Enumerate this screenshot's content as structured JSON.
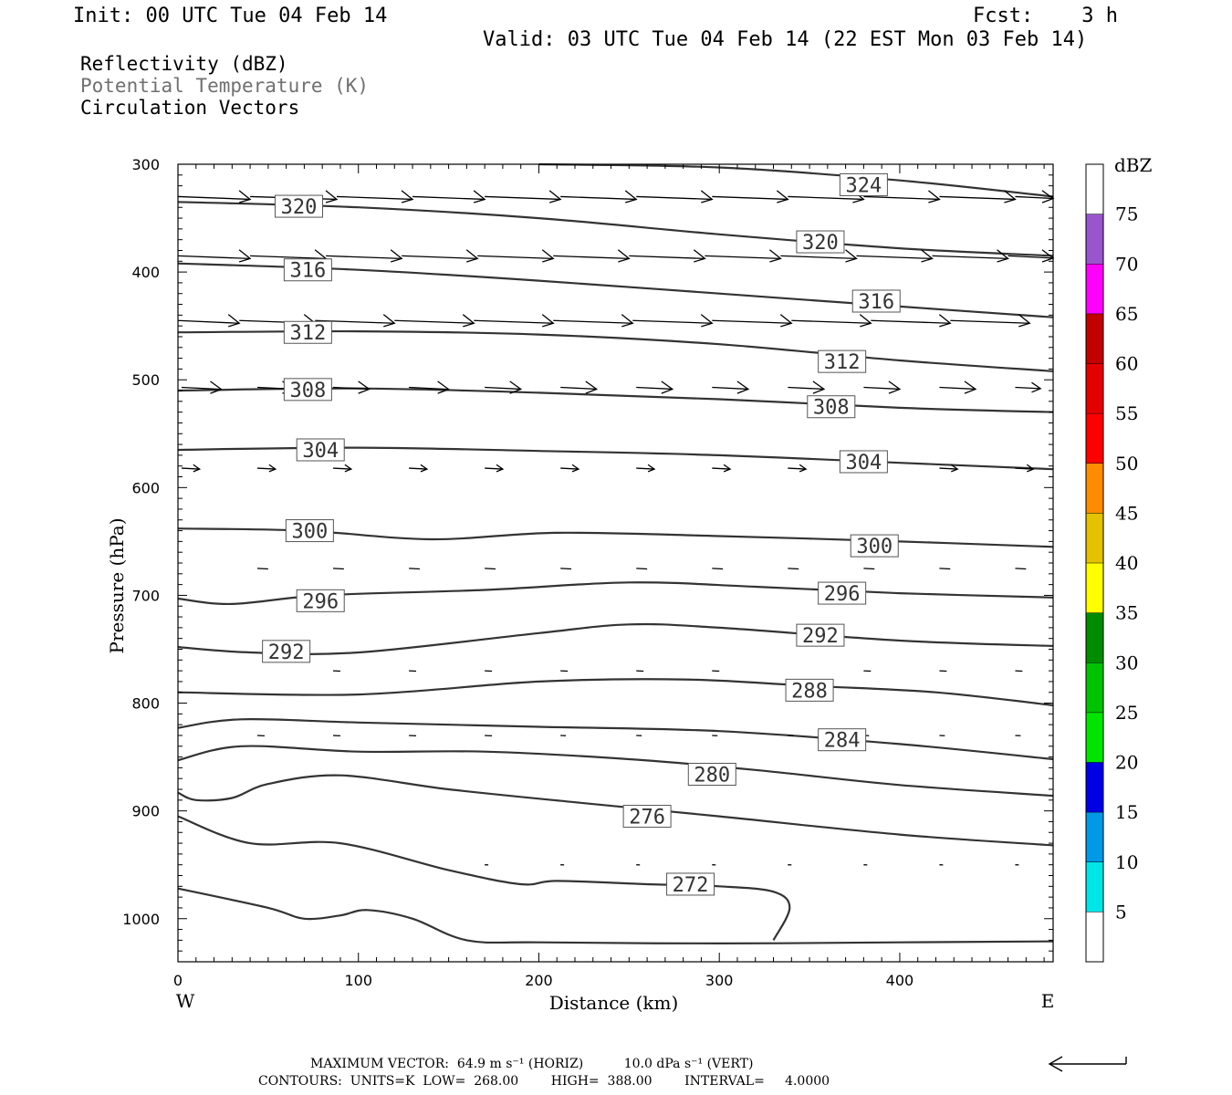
{
  "header": {
    "init": "Init: 00 UTC Tue 04 Feb 14",
    "fcst": "Fcst:    3 h",
    "valid": "Valid: 03 UTC Tue 04 Feb 14 (22 EST Mon 03 Feb 14)"
  },
  "legend_lines": {
    "reflectivity": "Reflectivity (dBZ)",
    "theta": "Potential Temperature (K)",
    "vectors": "Circulation Vectors"
  },
  "colors": {
    "theta_label": "#707070",
    "contour": "#333333",
    "axis": "#000000"
  },
  "chart_data": {
    "type": "line",
    "xlabel": "Distance (km)",
    "ylabel": "Pressure (hPa)",
    "xlim": [
      0,
      485
    ],
    "ylim": [
      1040,
      300
    ],
    "x_ticks": [
      0,
      100,
      200,
      300,
      400
    ],
    "y_ticks": [
      300,
      400,
      500,
      600,
      700,
      800,
      900,
      1000
    ],
    "x_end_labels": {
      "left": "W",
      "right": "E"
    },
    "contour_units": "K",
    "contours": [
      {
        "level": "324",
        "points": [
          [
            200,
            300
          ],
          [
            300,
            303
          ],
          [
            400,
            315
          ],
          [
            485,
            330
          ]
        ],
        "labels": [
          [
            380,
            319
          ]
        ]
      },
      {
        "level": "320",
        "points": [
          [
            0,
            335
          ],
          [
            100,
            340
          ],
          [
            200,
            350
          ],
          [
            300,
            365
          ],
          [
            400,
            378
          ],
          [
            485,
            385
          ]
        ],
        "labels": [
          [
            67,
            339
          ],
          [
            356,
            372
          ]
        ]
      },
      {
        "level": "316",
        "points": [
          [
            0,
            392
          ],
          [
            100,
            398
          ],
          [
            200,
            408
          ],
          [
            300,
            420
          ],
          [
            400,
            432
          ],
          [
            485,
            442
          ]
        ],
        "labels": [
          [
            72,
            398
          ],
          [
            387,
            427
          ]
        ]
      },
      {
        "level": "312",
        "points": [
          [
            0,
            456
          ],
          [
            100,
            455
          ],
          [
            200,
            458
          ],
          [
            300,
            467
          ],
          [
            400,
            482
          ],
          [
            485,
            492
          ]
        ],
        "labels": [
          [
            72,
            456
          ],
          [
            368,
            483
          ]
        ]
      },
      {
        "level": "308",
        "points": [
          [
            0,
            510
          ],
          [
            100,
            508
          ],
          [
            200,
            512
          ],
          [
            300,
            518
          ],
          [
            400,
            526
          ],
          [
            485,
            530
          ]
        ],
        "labels": [
          [
            72,
            509
          ],
          [
            362,
            525
          ]
        ]
      },
      {
        "level": "304",
        "points": [
          [
            0,
            565
          ],
          [
            100,
            563
          ],
          [
            200,
            566
          ],
          [
            300,
            570
          ],
          [
            400,
            577
          ],
          [
            485,
            583
          ]
        ],
        "labels": [
          [
            79,
            565
          ],
          [
            380,
            576
          ]
        ]
      },
      {
        "level": "300",
        "points": [
          [
            0,
            638
          ],
          [
            70,
            640
          ],
          [
            140,
            648
          ],
          [
            210,
            642
          ],
          [
            300,
            645
          ],
          [
            400,
            650
          ],
          [
            485,
            655
          ]
        ],
        "labels": [
          [
            73,
            640
          ],
          [
            386,
            654
          ]
        ]
      },
      {
        "level": "296",
        "points": [
          [
            0,
            703
          ],
          [
            30,
            708
          ],
          [
            80,
            700
          ],
          [
            170,
            695
          ],
          [
            250,
            688
          ],
          [
            320,
            692
          ],
          [
            400,
            698
          ],
          [
            485,
            702
          ]
        ],
        "labels": [
          [
            79,
            705
          ],
          [
            368,
            698
          ]
        ]
      },
      {
        "level": "292",
        "points": [
          [
            0,
            748
          ],
          [
            40,
            753
          ],
          [
            100,
            753
          ],
          [
            200,
            735
          ],
          [
            250,
            727
          ],
          [
            300,
            730
          ],
          [
            400,
            742
          ],
          [
            485,
            747
          ]
        ],
        "labels": [
          [
            60,
            752
          ],
          [
            356,
            737
          ]
        ]
      },
      {
        "level": "288",
        "points": [
          [
            0,
            790
          ],
          [
            100,
            792
          ],
          [
            200,
            780
          ],
          [
            280,
            778
          ],
          [
            350,
            784
          ],
          [
            420,
            790
          ],
          [
            485,
            802
          ]
        ],
        "labels": [
          [
            350,
            788
          ]
        ]
      },
      {
        "level": "284",
        "points": [
          [
            0,
            823
          ],
          [
            35,
            815
          ],
          [
            100,
            818
          ],
          [
            200,
            822
          ],
          [
            300,
            826
          ],
          [
            400,
            838
          ],
          [
            485,
            852
          ]
        ],
        "labels": [
          [
            368,
            834
          ]
        ]
      },
      {
        "level": "280",
        "points": [
          [
            0,
            853
          ],
          [
            35,
            840
          ],
          [
            100,
            845
          ],
          [
            170,
            845
          ],
          [
            250,
            852
          ],
          [
            320,
            862
          ],
          [
            400,
            876
          ],
          [
            485,
            886
          ]
        ],
        "labels": [
          [
            296,
            866
          ]
        ]
      },
      {
        "level": "276",
        "points": [
          [
            0,
            883
          ],
          [
            10,
            890
          ],
          [
            30,
            888
          ],
          [
            50,
            875
          ],
          [
            90,
            867
          ],
          [
            150,
            880
          ],
          [
            220,
            892
          ],
          [
            300,
            905
          ],
          [
            400,
            922
          ],
          [
            485,
            932
          ]
        ],
        "labels": [
          [
            260,
            905
          ]
        ]
      },
      {
        "level": "272",
        "points": [
          [
            0,
            905
          ],
          [
            40,
            930
          ],
          [
            90,
            930
          ],
          [
            150,
            955
          ],
          [
            190,
            968
          ],
          [
            210,
            965
          ],
          [
            260,
            968
          ],
          [
            300,
            970
          ],
          [
            330,
            975
          ],
          [
            339,
            990
          ],
          [
            330,
            1020
          ]
        ],
        "labels": [
          [
            284,
            968
          ]
        ]
      },
      {
        "level": "",
        "points": [
          [
            0,
            972
          ],
          [
            50,
            990
          ],
          [
            70,
            1000
          ],
          [
            90,
            997
          ],
          [
            105,
            992
          ],
          [
            130,
            1000
          ],
          [
            160,
            1020
          ],
          [
            200,
            1022
          ],
          [
            300,
            1023
          ],
          [
            400,
            1022
          ],
          [
            485,
            1021
          ]
        ],
        "labels": []
      }
    ],
    "vectors": [
      {
        "p": 330,
        "x": [
          [
            0,
            40
          ],
          [
            40,
            88
          ],
          [
            88,
            130
          ],
          [
            130,
            170
          ],
          [
            170,
            212
          ],
          [
            212,
            254
          ],
          [
            254,
            296
          ],
          [
            296,
            338
          ],
          [
            338,
            380
          ],
          [
            380,
            422
          ],
          [
            422,
            464
          ],
          [
            464,
            485
          ]
        ]
      },
      {
        "p": 385,
        "x": [
          [
            0,
            40
          ],
          [
            40,
            82
          ],
          [
            82,
            124
          ],
          [
            124,
            166
          ],
          [
            166,
            208
          ],
          [
            208,
            250
          ],
          [
            250,
            292
          ],
          [
            292,
            334
          ],
          [
            334,
            376
          ],
          [
            376,
            418
          ],
          [
            418,
            460
          ],
          [
            460,
            485
          ]
        ]
      },
      {
        "p": 445,
        "x": [
          [
            0,
            34
          ],
          [
            34,
            76
          ],
          [
            76,
            120
          ],
          [
            120,
            164
          ],
          [
            164,
            208
          ],
          [
            208,
            252
          ],
          [
            252,
            296
          ],
          [
            296,
            340
          ],
          [
            340,
            384
          ],
          [
            384,
            428
          ],
          [
            428,
            472
          ]
        ]
      },
      {
        "p": 507,
        "x": [
          [
            2,
            24
          ],
          [
            44,
            64
          ],
          [
            86,
            106
          ],
          [
            128,
            150
          ],
          [
            170,
            190
          ],
          [
            212,
            232
          ],
          [
            254,
            274
          ],
          [
            296,
            316
          ],
          [
            338,
            358
          ],
          [
            380,
            400
          ],
          [
            422,
            442
          ],
          [
            464,
            478
          ]
        ]
      },
      {
        "p": 582,
        "x": [
          [
            2,
            12
          ],
          [
            44,
            54
          ],
          [
            86,
            96
          ],
          [
            128,
            138
          ],
          [
            170,
            180
          ],
          [
            212,
            222
          ],
          [
            254,
            264
          ],
          [
            296,
            306
          ],
          [
            338,
            348
          ],
          [
            380,
            390
          ],
          [
            422,
            432
          ],
          [
            464,
            474
          ]
        ]
      },
      {
        "p": 675,
        "x": [
          [
            44,
            50
          ],
          [
            86,
            92
          ],
          [
            128,
            134
          ],
          [
            170,
            176
          ],
          [
            212,
            218
          ],
          [
            254,
            260
          ],
          [
            296,
            302
          ],
          [
            338,
            344
          ],
          [
            380,
            386
          ],
          [
            422,
            428
          ],
          [
            464,
            470
          ]
        ]
      },
      {
        "p": 770,
        "x": [
          [
            86,
            90
          ],
          [
            128,
            132
          ],
          [
            170,
            174
          ],
          [
            212,
            216
          ],
          [
            254,
            258
          ],
          [
            296,
            300
          ],
          [
            380,
            384
          ],
          [
            422,
            426
          ],
          [
            464,
            468
          ]
        ]
      },
      {
        "p": 830,
        "x": [
          [
            44,
            48
          ],
          [
            86,
            90
          ],
          [
            128,
            132
          ],
          [
            170,
            174
          ],
          [
            212,
            215
          ],
          [
            254,
            257
          ],
          [
            296,
            299
          ],
          [
            338,
            341
          ],
          [
            380,
            383
          ],
          [
            422,
            425
          ],
          [
            464,
            467
          ]
        ]
      },
      {
        "p": 950,
        "x": [
          [
            170,
            172
          ],
          [
            212,
            214
          ],
          [
            254,
            256
          ],
          [
            296,
            298
          ],
          [
            338,
            340
          ],
          [
            380,
            382
          ],
          [
            422,
            424
          ],
          [
            464,
            466
          ]
        ]
      }
    ]
  },
  "colorbar": {
    "title": "dBZ",
    "levels": [
      "5",
      "10",
      "15",
      "20",
      "25",
      "30",
      "35",
      "40",
      "45",
      "50",
      "55",
      "60",
      "65",
      "70",
      "75"
    ],
    "colors": [
      "#00E5E5",
      "#0099E5",
      "#0000E5",
      "#00E500",
      "#00C200",
      "#008C00",
      "#FFFF00",
      "#E5C200",
      "#FF8C00",
      "#FF0000",
      "#E50000",
      "#C20000",
      "#FF00FF",
      "#9955CC"
    ]
  },
  "footer": {
    "max_vector": "MAXIMUM VECTOR:  64.9 m s⁻¹ (HORIZ)          10.0 dPa s⁻¹ (VERT)",
    "contours": "CONTOURS:  UNITS=K  LOW=  268.00        HIGH=  388.00        INTERVAL=     4.0000"
  }
}
